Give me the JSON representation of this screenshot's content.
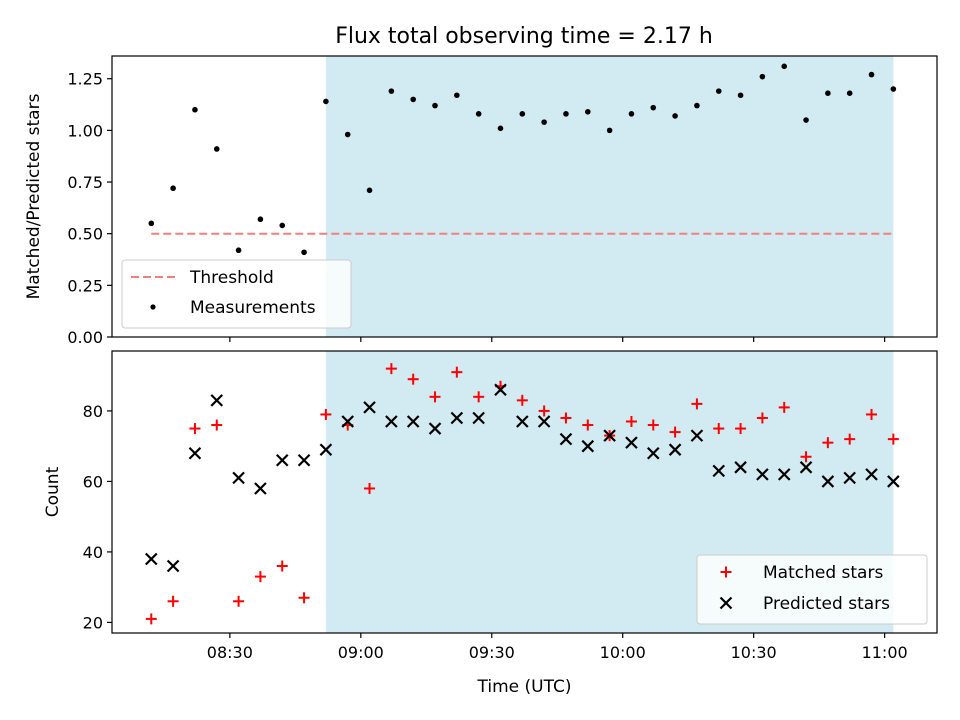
{
  "title": "Flux total observing time = 2.17 h",
  "chart_data": [
    {
      "type": "scatter",
      "ylabel": "Matched/Predicted stars",
      "ylim": [
        0,
        1.36
      ],
      "yticks": [
        0.0,
        0.25,
        0.5,
        0.75,
        1.0,
        1.25
      ],
      "ytick_labels": [
        "0.00",
        "0.25",
        "0.50",
        "0.75",
        "1.00",
        "1.25"
      ],
      "legend_placement": "lower-left",
      "threshold": {
        "name": "Threshold",
        "value": 0.5,
        "x": [
          "08:12",
          "11:02"
        ],
        "color": "#f08080"
      },
      "series": [
        {
          "name": "Measurements",
          "color": "#000000",
          "x": [
            "08:12",
            "08:17",
            "08:22",
            "08:27",
            "08:32",
            "08:37",
            "08:42",
            "08:47",
            "08:52",
            "08:57",
            "09:02",
            "09:07",
            "09:12",
            "09:17",
            "09:22",
            "09:27",
            "09:32",
            "09:37",
            "09:42",
            "09:47",
            "09:52",
            "09:57",
            "10:02",
            "10:07",
            "10:12",
            "10:17",
            "10:22",
            "10:27",
            "10:32",
            "10:37",
            "10:42",
            "10:47",
            "10:52",
            "10:57",
            "11:02"
          ],
          "values": [
            0.55,
            0.72,
            1.1,
            0.91,
            0.42,
            0.57,
            0.54,
            0.41,
            1.14,
            0.98,
            0.71,
            1.19,
            1.15,
            1.12,
            1.17,
            1.08,
            1.01,
            1.08,
            1.04,
            1.08,
            1.09,
            1.0,
            1.08,
            1.11,
            1.07,
            1.12,
            1.19,
            1.17,
            1.26,
            1.31,
            1.05,
            1.18,
            1.18,
            1.27,
            1.2
          ]
        }
      ]
    },
    {
      "type": "scatter",
      "ylabel": "Count",
      "xlabel": "Time (UTC)",
      "ylim": [
        17,
        97
      ],
      "yticks": [
        20,
        40,
        60,
        80
      ],
      "ytick_labels": [
        "20",
        "40",
        "60",
        "80"
      ],
      "xlim": [
        "08:03",
        "11:12"
      ],
      "xticks": [
        "08:30",
        "09:00",
        "09:30",
        "10:00",
        "10:30",
        "11:00"
      ],
      "legend_placement": "lower-right",
      "series": [
        {
          "name": "Matched stars",
          "marker": "plus",
          "color": "#ff0000",
          "x": [
            "08:12",
            "08:17",
            "08:22",
            "08:27",
            "08:32",
            "08:37",
            "08:42",
            "08:47",
            "08:52",
            "08:57",
            "09:02",
            "09:07",
            "09:12",
            "09:17",
            "09:22",
            "09:27",
            "09:32",
            "09:37",
            "09:42",
            "09:47",
            "09:52",
            "09:57",
            "10:02",
            "10:07",
            "10:12",
            "10:17",
            "10:22",
            "10:27",
            "10:32",
            "10:37",
            "10:42",
            "10:47",
            "10:52",
            "10:57",
            "11:02"
          ],
          "values": [
            21,
            26,
            75,
            76,
            26,
            33,
            36,
            27,
            79,
            76,
            58,
            92,
            89,
            84,
            91,
            84,
            87,
            83,
            80,
            78,
            76,
            73,
            77,
            76,
            74,
            82,
            75,
            75,
            78,
            81,
            67,
            71,
            72,
            79,
            72
          ]
        },
        {
          "name": "Predicted stars",
          "marker": "x",
          "color": "#000000",
          "x": [
            "08:12",
            "08:17",
            "08:22",
            "08:27",
            "08:32",
            "08:37",
            "08:42",
            "08:47",
            "08:52",
            "08:57",
            "09:02",
            "09:07",
            "09:12",
            "09:17",
            "09:22",
            "09:27",
            "09:32",
            "09:37",
            "09:42",
            "09:47",
            "09:52",
            "09:57",
            "10:02",
            "10:07",
            "10:12",
            "10:17",
            "10:22",
            "10:27",
            "10:32",
            "10:37",
            "10:42",
            "10:47",
            "10:52",
            "10:57",
            "11:02"
          ],
          "values": [
            38,
            36,
            68,
            83,
            61,
            58,
            66,
            66,
            69,
            77,
            81,
            77,
            77,
            75,
            78,
            78,
            86,
            77,
            77,
            72,
            70,
            73,
            71,
            68,
            69,
            73,
            63,
            64,
            62,
            62,
            64,
            60,
            61,
            62,
            60
          ]
        }
      ]
    }
  ],
  "observing_window": {
    "start": "08:52",
    "end": "11:02",
    "color": "#add8e6"
  }
}
